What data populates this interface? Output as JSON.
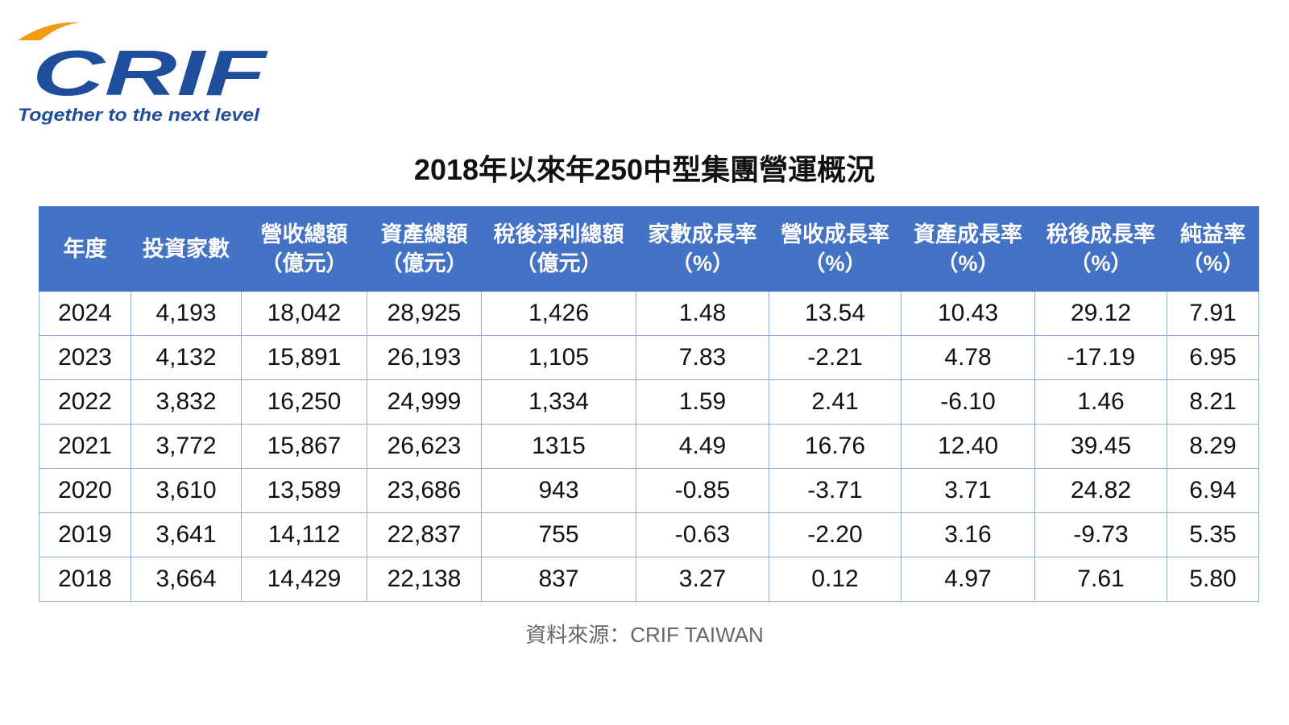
{
  "logo": {
    "name": "CRIF",
    "tagline": "Together to the next level"
  },
  "title": "2018年以來年250中型集團營運概況",
  "table": {
    "header": [
      [
        "年度"
      ],
      [
        "投資家數"
      ],
      [
        "營收總額",
        "（億元）"
      ],
      [
        "資產總額",
        "（億元）"
      ],
      [
        "稅後淨利總額",
        "（億元）"
      ],
      [
        "家數成長率",
        "（%）"
      ],
      [
        "營收成長率",
        "（%）"
      ],
      [
        "資產成長率",
        "（%）"
      ],
      [
        "稅後成長率",
        "（%）"
      ],
      [
        "純益率",
        "（%）"
      ]
    ],
    "rows": [
      [
        "2024",
        "4,193",
        "18,042",
        "28,925",
        "1,426",
        "1.48",
        "13.54",
        "10.43",
        "29.12",
        "7.91"
      ],
      [
        "2023",
        "4,132",
        "15,891",
        "26,193",
        "1,105",
        "7.83",
        "-2.21",
        "4.78",
        "-17.19",
        "6.95"
      ],
      [
        "2022",
        "3,832",
        "16,250",
        "24,999",
        "1,334",
        "1.59",
        "2.41",
        "-6.10",
        "1.46",
        "8.21"
      ],
      [
        "2021",
        "3,772",
        "15,867",
        "26,623",
        "1315",
        "4.49",
        "16.76",
        "12.40",
        "39.45",
        "8.29"
      ],
      [
        "2020",
        "3,610",
        "13,589",
        "23,686",
        "943",
        "-0.85",
        "-3.71",
        "3.71",
        "24.82",
        "6.94"
      ],
      [
        "2019",
        "3,641",
        "14,112",
        "22,837",
        "755",
        "-0.63",
        "-2.20",
        "3.16",
        "-9.73",
        "5.35"
      ],
      [
        "2018",
        "3,664",
        "14,429",
        "22,138",
        "837",
        "3.27",
        "0.12",
        "4.97",
        "7.61",
        "5.80"
      ]
    ]
  },
  "source": "資料來源：CRIF TAIWAN"
}
